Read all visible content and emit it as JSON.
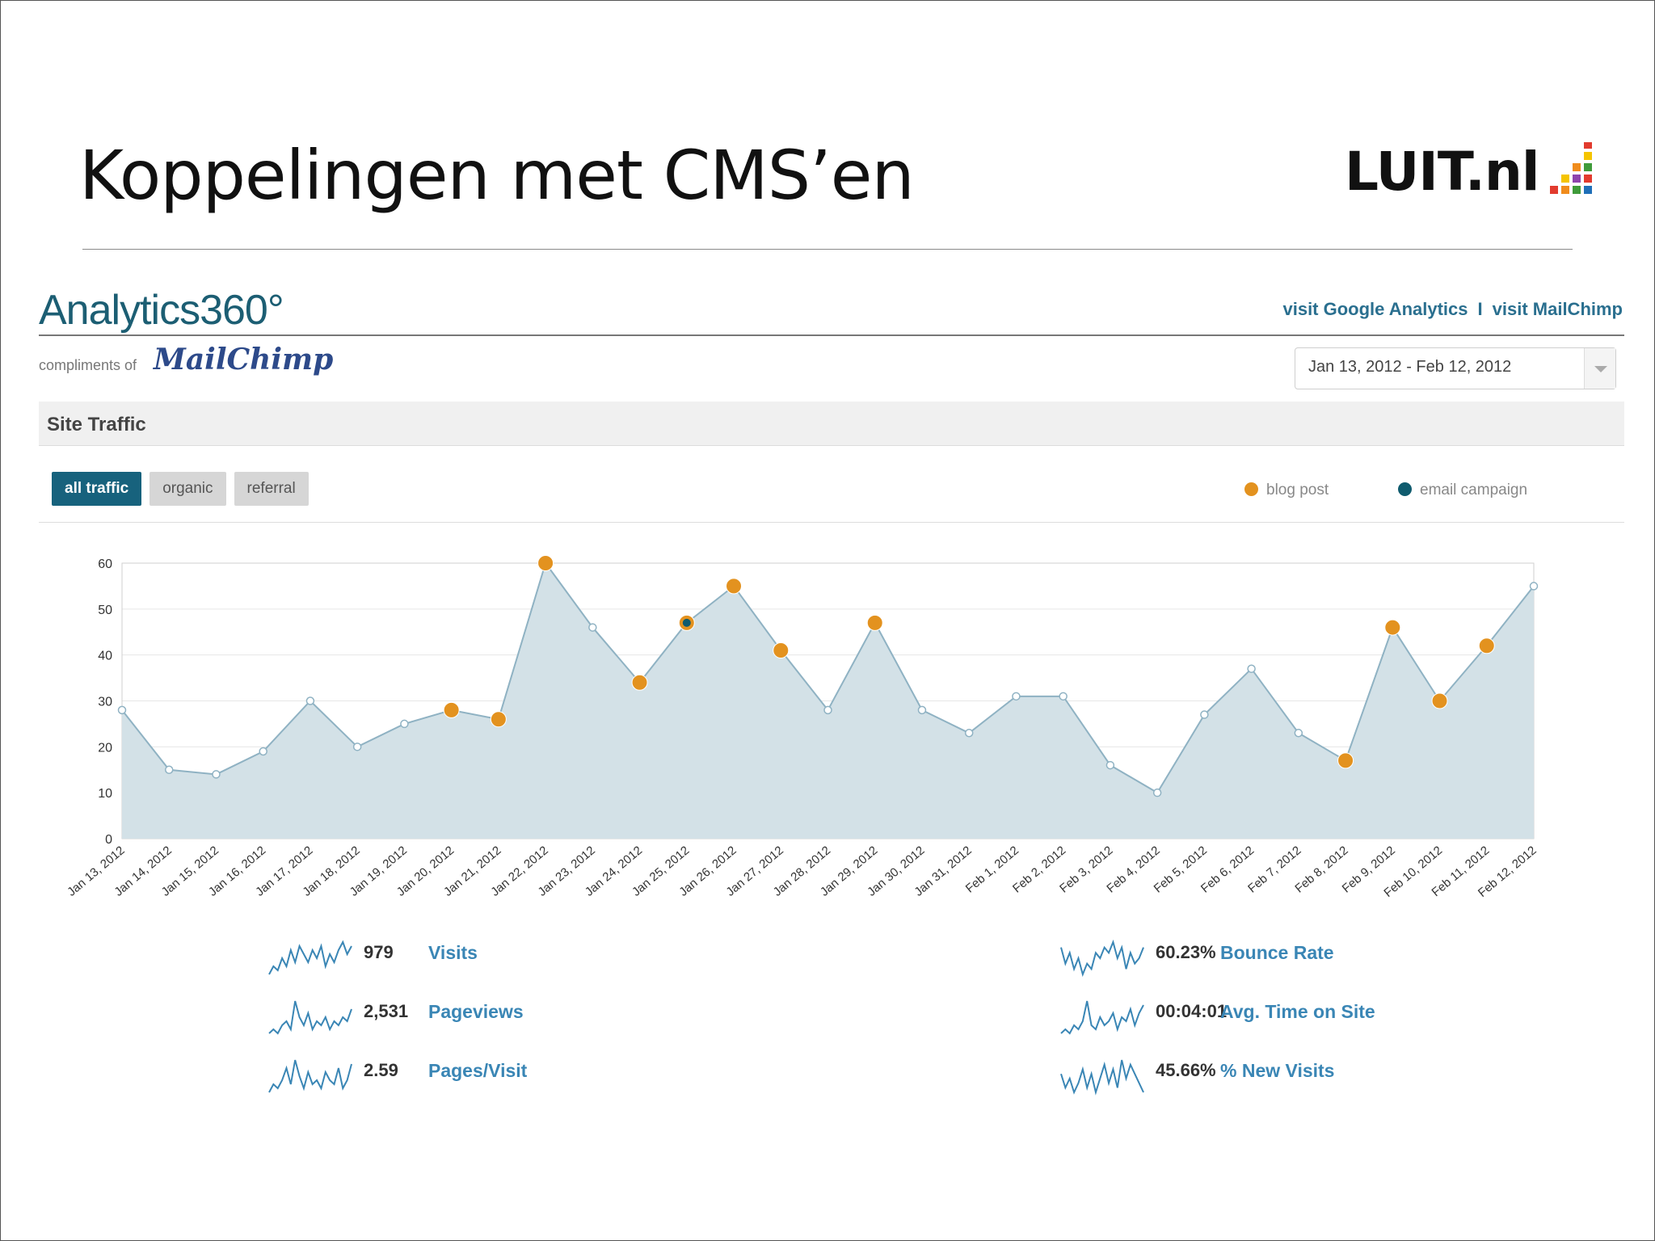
{
  "slide": {
    "title": "Koppelingen met CMS’en",
    "logo_text": "LUIT.nl"
  },
  "brand": {
    "name": "Analytics360°",
    "compliments": "compliments of",
    "mailchimp": "MailChimp"
  },
  "links": {
    "google": "visit Google Analytics",
    "separator": "I",
    "mailchimp": "visit MailChimp"
  },
  "date_range": {
    "value": "Jan 13, 2012 - Feb 12, 2012"
  },
  "section": {
    "title": "Site Traffic"
  },
  "tabs": [
    {
      "label": "all traffic"
    },
    {
      "label": "organic"
    },
    {
      "label": "referral"
    }
  ],
  "legend": [
    {
      "label": "blog post",
      "color": "#e3921f"
    },
    {
      "label": "email campaign",
      "color": "#0f5b6e"
    }
  ],
  "colors": {
    "area": "#d3e1e7",
    "line": "#8fb2c3",
    "blog": "#e3921f",
    "email": "#0f5b6e",
    "link": "#3a86b5"
  },
  "chart_data": {
    "type": "area",
    "ylim": [
      0,
      60
    ],
    "yticks": [
      0,
      10,
      20,
      30,
      40,
      50,
      60
    ],
    "grid": true,
    "x": [
      "Jan 13, 2012",
      "Jan 14, 2012",
      "Jan 15, 2012",
      "Jan 16, 2012",
      "Jan 17, 2012",
      "Jan 18, 2012",
      "Jan 19, 2012",
      "Jan 20, 2012",
      "Jan 21, 2012",
      "Jan 22, 2012",
      "Jan 23, 2012",
      "Jan 24, 2012",
      "Jan 25, 2012",
      "Jan 26, 2012",
      "Jan 27, 2012",
      "Jan 28, 2012",
      "Jan 29, 2012",
      "Jan 30, 2012",
      "Jan 31, 2012",
      "Feb 1, 2012",
      "Feb 2, 2012",
      "Feb 3, 2012",
      "Feb 4, 2012",
      "Feb 5, 2012",
      "Feb 6, 2012",
      "Feb 7, 2012",
      "Feb 8, 2012",
      "Feb 9, 2012",
      "Feb 10, 2012",
      "Feb 11, 2012",
      "Feb 12, 2012"
    ],
    "series": [
      {
        "values": [
          28,
          15,
          14,
          19,
          30,
          20,
          25,
          28,
          26,
          60,
          46,
          34,
          47,
          55,
          41,
          28,
          47,
          28,
          23,
          31,
          31,
          16,
          10,
          27,
          37,
          23,
          17,
          46,
          30,
          42,
          55
        ]
      }
    ],
    "blog_post_days": [
      "Jan 20, 2012",
      "Jan 21, 2012",
      "Jan 22, 2012",
      "Jan 24, 2012",
      "Jan 25, 2012",
      "Jan 26, 2012",
      "Jan 27, 2012",
      "Jan 29, 2012",
      "Feb 8, 2012",
      "Feb 9, 2012",
      "Feb 10, 2012",
      "Feb 11, 2012"
    ],
    "email_campaign_days": [
      "Jan 25, 2012"
    ]
  },
  "metrics": [
    {
      "value": "979",
      "label": "Visits",
      "spark": [
        3,
        5,
        4,
        7,
        5,
        9,
        6,
        10,
        8,
        6,
        9,
        7,
        10,
        5,
        8,
        6,
        9,
        11,
        8,
        10
      ]
    },
    {
      "value": "2,531",
      "label": "Pageviews",
      "spark": [
        3,
        4,
        3,
        5,
        6,
        4,
        11,
        7,
        5,
        8,
        4,
        6,
        5,
        7,
        4,
        6,
        5,
        7,
        6,
        9
      ]
    },
    {
      "value": "2.59",
      "label": "Pages/Visit",
      "spark": [
        3,
        5,
        4,
        6,
        9,
        5,
        11,
        7,
        4,
        8,
        5,
        6,
        4,
        8,
        6,
        5,
        9,
        4,
        6,
        10
      ]
    },
    {
      "value": "60.23%",
      "label": "Bounce Rate",
      "spark": [
        9,
        6,
        8,
        5,
        7,
        4,
        6,
        5,
        8,
        7,
        9,
        8,
        10,
        7,
        9,
        5,
        8,
        6,
        7,
        9
      ]
    },
    {
      "value": "00:04:01",
      "label": "Avg. Time on Site",
      "spark": [
        3,
        4,
        3,
        5,
        4,
        6,
        11,
        5,
        4,
        7,
        5,
        6,
        8,
        4,
        7,
        6,
        9,
        5,
        8,
        10
      ]
    },
    {
      "value": "45.66%",
      "label": "% New Visits",
      "spark": [
        8,
        5,
        7,
        4,
        6,
        9,
        5,
        8,
        4,
        7,
        10,
        6,
        9,
        5,
        11,
        7,
        10,
        8,
        6,
        4
      ]
    }
  ]
}
